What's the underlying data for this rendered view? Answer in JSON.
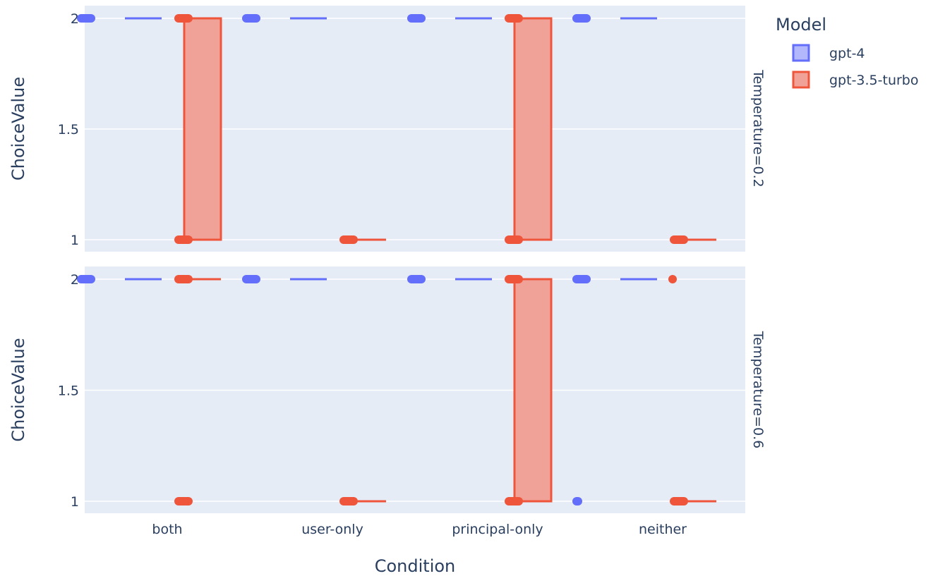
{
  "chart_data": {
    "type": "box",
    "x_label": "Condition",
    "y_label": "ChoiceValue",
    "categories": [
      "both",
      "user-only",
      "principal-only",
      "neither"
    ],
    "legend": {
      "title": "Model",
      "items": [
        {
          "name": "gpt-4",
          "color": "#636efa",
          "fill": "#b3b7fc"
        },
        {
          "name": "gpt-3.5-turbo",
          "color": "#ef553b",
          "fill": "#f1a298"
        }
      ]
    },
    "y_ticks": [
      "1",
      "1.5",
      "2"
    ],
    "y_tick_values": [
      1,
      1.5,
      2
    ],
    "ylim": [
      0.95,
      2.05
    ],
    "facets": [
      {
        "label": "Temperature=0.2",
        "series": [
          {
            "name": "gpt-4",
            "boxes": [
              {
                "category": "both",
                "q1": 2,
                "median": 2,
                "q3": 2,
                "points": [
                  2
                ]
              },
              {
                "category": "user-only",
                "q1": 2,
                "median": 2,
                "q3": 2,
                "points": [
                  2
                ]
              },
              {
                "category": "principal-only",
                "q1": 2,
                "median": 2,
                "q3": 2,
                "points": [
                  2
                ]
              },
              {
                "category": "neither",
                "q1": 2,
                "median": 2,
                "q3": 2,
                "points": [
                  2
                ]
              }
            ]
          },
          {
            "name": "gpt-3.5-turbo",
            "boxes": [
              {
                "category": "both",
                "q1": 1,
                "median": 2,
                "q3": 2,
                "points": [
                  1,
                  2
                ]
              },
              {
                "category": "user-only",
                "q1": 1,
                "median": 1,
                "q3": 1,
                "points": [
                  1
                ]
              },
              {
                "category": "principal-only",
                "q1": 1,
                "median": 2,
                "q3": 2,
                "points": [
                  1,
                  2
                ]
              },
              {
                "category": "neither",
                "q1": 1,
                "median": 1,
                "q3": 1,
                "points": [
                  1
                ]
              }
            ]
          }
        ]
      },
      {
        "label": "Temperature=0.6",
        "series": [
          {
            "name": "gpt-4",
            "boxes": [
              {
                "category": "both",
                "q1": 2,
                "median": 2,
                "q3": 2,
                "points": [
                  2
                ]
              },
              {
                "category": "user-only",
                "q1": 2,
                "median": 2,
                "q3": 2,
                "points": [
                  2
                ]
              },
              {
                "category": "principal-only",
                "q1": 2,
                "median": 2,
                "q3": 2,
                "points": [
                  2
                ]
              },
              {
                "category": "neither",
                "q1": 2,
                "median": 2,
                "q3": 2,
                "points": [
                  2,
                  1
                ]
              }
            ]
          },
          {
            "name": "gpt-3.5-turbo",
            "boxes": [
              {
                "category": "both",
                "q1": 2,
                "median": 2,
                "q3": 2,
                "points": [
                  2,
                  1
                ]
              },
              {
                "category": "user-only",
                "q1": 1,
                "median": 1,
                "q3": 1,
                "points": [
                  1
                ]
              },
              {
                "category": "principal-only",
                "q1": 1,
                "median": 2,
                "q3": 2,
                "points": [
                  1,
                  2
                ]
              },
              {
                "category": "neither",
                "q1": 1,
                "median": 1,
                "q3": 1,
                "points": [
                  1,
                  2
                ]
              }
            ]
          }
        ]
      }
    ]
  }
}
